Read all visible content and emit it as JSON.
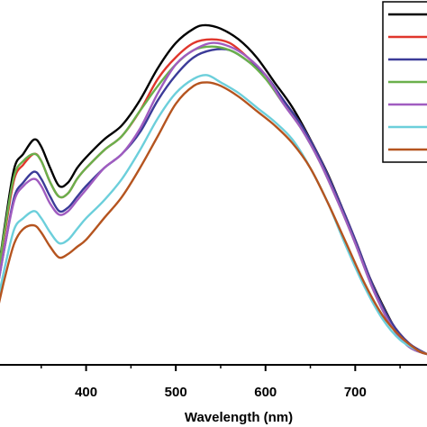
{
  "chart_data": {
    "type": "line",
    "title": "",
    "xlabel": "Wavelength (nm)",
    "ylabel": "",
    "xlim": [
      300,
      780
    ],
    "ylim": [
      0,
      1.0
    ],
    "x_ticks": [
      400,
      500,
      600,
      700
    ],
    "grid": false,
    "legend": {
      "placement": "top-right",
      "entries": [
        "",
        "",
        "",
        "",
        "",
        "",
        ""
      ]
    },
    "series": [
      {
        "color": "#000000",
        "points": [
          [
            300,
            0.22
          ],
          [
            310,
            0.4
          ],
          [
            320,
            0.55
          ],
          [
            330,
            0.59
          ],
          [
            342,
            0.63
          ],
          [
            350,
            0.61
          ],
          [
            360,
            0.55
          ],
          [
            370,
            0.5
          ],
          [
            380,
            0.51
          ],
          [
            390,
            0.55
          ],
          [
            400,
            0.58
          ],
          [
            420,
            0.63
          ],
          [
            440,
            0.67
          ],
          [
            460,
            0.74
          ],
          [
            480,
            0.83
          ],
          [
            500,
            0.9
          ],
          [
            520,
            0.94
          ],
          [
            533,
            0.95
          ],
          [
            550,
            0.94
          ],
          [
            570,
            0.91
          ],
          [
            590,
            0.86
          ],
          [
            610,
            0.79
          ],
          [
            630,
            0.72
          ],
          [
            650,
            0.63
          ],
          [
            670,
            0.53
          ],
          [
            690,
            0.41
          ],
          [
            710,
            0.28
          ],
          [
            730,
            0.17
          ],
          [
            750,
            0.08
          ],
          [
            770,
            0.04
          ],
          [
            780,
            0.03
          ]
        ]
      },
      {
        "color": "#e0362c",
        "points": [
          [
            300,
            0.22
          ],
          [
            310,
            0.38
          ],
          [
            320,
            0.52
          ],
          [
            330,
            0.56
          ],
          [
            342,
            0.59
          ],
          [
            350,
            0.57
          ],
          [
            360,
            0.51
          ],
          [
            370,
            0.47
          ],
          [
            380,
            0.48
          ],
          [
            390,
            0.52
          ],
          [
            400,
            0.55
          ],
          [
            420,
            0.6
          ],
          [
            440,
            0.64
          ],
          [
            460,
            0.71
          ],
          [
            480,
            0.8
          ],
          [
            500,
            0.86
          ],
          [
            520,
            0.9
          ],
          [
            540,
            0.91
          ],
          [
            560,
            0.9
          ],
          [
            580,
            0.86
          ],
          [
            600,
            0.81
          ],
          [
            620,
            0.74
          ],
          [
            640,
            0.67
          ],
          [
            660,
            0.58
          ],
          [
            680,
            0.47
          ],
          [
            700,
            0.35
          ],
          [
            720,
            0.22
          ],
          [
            740,
            0.12
          ],
          [
            760,
            0.06
          ],
          [
            780,
            0.03
          ]
        ]
      },
      {
        "color": "#3b3b98",
        "points": [
          [
            300,
            0.2
          ],
          [
            310,
            0.34
          ],
          [
            320,
            0.47
          ],
          [
            330,
            0.51
          ],
          [
            342,
            0.54
          ],
          [
            350,
            0.52
          ],
          [
            360,
            0.47
          ],
          [
            370,
            0.43
          ],
          [
            380,
            0.44
          ],
          [
            390,
            0.47
          ],
          [
            400,
            0.5
          ],
          [
            420,
            0.55
          ],
          [
            440,
            0.59
          ],
          [
            460,
            0.65
          ],
          [
            480,
            0.74
          ],
          [
            500,
            0.81
          ],
          [
            520,
            0.86
          ],
          [
            540,
            0.88
          ],
          [
            560,
            0.88
          ],
          [
            580,
            0.85
          ],
          [
            600,
            0.81
          ],
          [
            620,
            0.74
          ],
          [
            640,
            0.67
          ],
          [
            660,
            0.58
          ],
          [
            680,
            0.47
          ],
          [
            700,
            0.35
          ],
          [
            720,
            0.22
          ],
          [
            740,
            0.12
          ],
          [
            760,
            0.06
          ],
          [
            780,
            0.03
          ]
        ]
      },
      {
        "color": "#6ab04c",
        "points": [
          [
            300,
            0.22
          ],
          [
            310,
            0.39
          ],
          [
            320,
            0.53
          ],
          [
            330,
            0.57
          ],
          [
            342,
            0.59
          ],
          [
            350,
            0.57
          ],
          [
            360,
            0.51
          ],
          [
            370,
            0.47
          ],
          [
            380,
            0.48
          ],
          [
            390,
            0.52
          ],
          [
            400,
            0.55
          ],
          [
            420,
            0.6
          ],
          [
            440,
            0.64
          ],
          [
            460,
            0.71
          ],
          [
            480,
            0.78
          ],
          [
            500,
            0.84
          ],
          [
            520,
            0.88
          ],
          [
            540,
            0.89
          ],
          [
            560,
            0.88
          ],
          [
            580,
            0.85
          ],
          [
            600,
            0.8
          ],
          [
            620,
            0.73
          ],
          [
            640,
            0.66
          ],
          [
            660,
            0.57
          ],
          [
            680,
            0.46
          ],
          [
            700,
            0.34
          ],
          [
            720,
            0.21
          ],
          [
            740,
            0.11
          ],
          [
            760,
            0.05
          ],
          [
            780,
            0.03
          ]
        ]
      },
      {
        "color": "#a05cc0",
        "points": [
          [
            300,
            0.2
          ],
          [
            310,
            0.34
          ],
          [
            320,
            0.46
          ],
          [
            330,
            0.5
          ],
          [
            342,
            0.52
          ],
          [
            350,
            0.5
          ],
          [
            360,
            0.45
          ],
          [
            370,
            0.42
          ],
          [
            380,
            0.43
          ],
          [
            390,
            0.46
          ],
          [
            400,
            0.49
          ],
          [
            420,
            0.55
          ],
          [
            440,
            0.59
          ],
          [
            460,
            0.66
          ],
          [
            480,
            0.76
          ],
          [
            500,
            0.84
          ],
          [
            520,
            0.88
          ],
          [
            540,
            0.9
          ],
          [
            560,
            0.89
          ],
          [
            580,
            0.86
          ],
          [
            600,
            0.81
          ],
          [
            620,
            0.73
          ],
          [
            640,
            0.66
          ],
          [
            660,
            0.57
          ],
          [
            680,
            0.46
          ],
          [
            700,
            0.34
          ],
          [
            720,
            0.21
          ],
          [
            740,
            0.11
          ],
          [
            760,
            0.05
          ],
          [
            780,
            0.03
          ]
        ]
      },
      {
        "color": "#6ccfdb",
        "points": [
          [
            300,
            0.16
          ],
          [
            310,
            0.28
          ],
          [
            320,
            0.38
          ],
          [
            330,
            0.41
          ],
          [
            342,
            0.43
          ],
          [
            350,
            0.41
          ],
          [
            360,
            0.37
          ],
          [
            370,
            0.34
          ],
          [
            380,
            0.35
          ],
          [
            390,
            0.38
          ],
          [
            400,
            0.41
          ],
          [
            420,
            0.46
          ],
          [
            440,
            0.52
          ],
          [
            460,
            0.6
          ],
          [
            480,
            0.69
          ],
          [
            500,
            0.76
          ],
          [
            520,
            0.8
          ],
          [
            535,
            0.81
          ],
          [
            550,
            0.79
          ],
          [
            570,
            0.76
          ],
          [
            590,
            0.72
          ],
          [
            610,
            0.68
          ],
          [
            630,
            0.63
          ],
          [
            650,
            0.55
          ],
          [
            670,
            0.45
          ],
          [
            690,
            0.33
          ],
          [
            710,
            0.22
          ],
          [
            730,
            0.13
          ],
          [
            750,
            0.07
          ],
          [
            770,
            0.04
          ],
          [
            780,
            0.03
          ]
        ]
      },
      {
        "color": "#b5541f",
        "points": [
          [
            300,
            0.14
          ],
          [
            310,
            0.25
          ],
          [
            320,
            0.34
          ],
          [
            330,
            0.38
          ],
          [
            342,
            0.39
          ],
          [
            350,
            0.37
          ],
          [
            360,
            0.33
          ],
          [
            370,
            0.3
          ],
          [
            380,
            0.31
          ],
          [
            390,
            0.33
          ],
          [
            400,
            0.35
          ],
          [
            420,
            0.41
          ],
          [
            440,
            0.47
          ],
          [
            460,
            0.55
          ],
          [
            480,
            0.64
          ],
          [
            500,
            0.73
          ],
          [
            520,
            0.78
          ],
          [
            535,
            0.79
          ],
          [
            550,
            0.78
          ],
          [
            570,
            0.75
          ],
          [
            590,
            0.71
          ],
          [
            610,
            0.67
          ],
          [
            630,
            0.62
          ],
          [
            650,
            0.55
          ],
          [
            670,
            0.45
          ],
          [
            690,
            0.34
          ],
          [
            710,
            0.23
          ],
          [
            730,
            0.14
          ],
          [
            750,
            0.08
          ],
          [
            770,
            0.04
          ],
          [
            780,
            0.03
          ]
        ]
      }
    ]
  }
}
